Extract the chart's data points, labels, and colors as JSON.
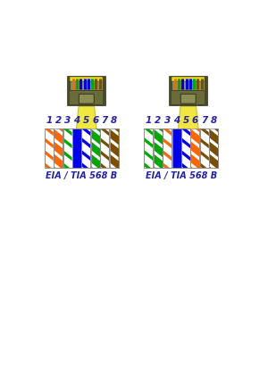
{
  "bg_color": "#ffffff",
  "label_color": "#2222aa",
  "label_fontsize": 7.5,
  "eia_label": "EIA / TIA 568 B",
  "eia_fontsize": 7,
  "numbers": [
    "1",
    "2",
    "3",
    "4",
    "5",
    "6",
    "7",
    "8"
  ],
  "left_wires": [
    {
      "main": "#ffffff",
      "stripe": "#ff6600"
    },
    {
      "main": "#ff6600",
      "stripe": "#ffffff"
    },
    {
      "main": "#ffffff",
      "stripe": "#00aa00"
    },
    {
      "main": "#0000ee",
      "stripe": "#0000ee"
    },
    {
      "main": "#ffffff",
      "stripe": "#0000ee"
    },
    {
      "main": "#00aa00",
      "stripe": "#ffffff"
    },
    {
      "main": "#ffffff",
      "stripe": "#7b4f00"
    },
    {
      "main": "#7b4f00",
      "stripe": "#ffffff"
    }
  ],
  "right_wires": [
    {
      "main": "#ffffff",
      "stripe": "#00aa00"
    },
    {
      "main": "#00aa00",
      "stripe": "#ffffff"
    },
    {
      "main": "#ffffff",
      "stripe": "#ff6600"
    },
    {
      "main": "#0000ee",
      "stripe": "#0000ee"
    },
    {
      "main": "#ffffff",
      "stripe": "#0000ee"
    },
    {
      "main": "#ff6600",
      "stripe": "#ffffff"
    },
    {
      "main": "#ffffff",
      "stripe": "#7b4f00"
    },
    {
      "main": "#7b4f00",
      "stripe": "#ffffff"
    }
  ],
  "connector_body_color": "#6b6b3a",
  "connector_highlight_color": "#8c8c55",
  "connector_dark_color": "#4a4a28",
  "cable_color": "#f0e840",
  "cable_edge_color": "#c8c020",
  "connector_border": "#333320",
  "pin_colors": [
    "#ff6600",
    "#00aa00",
    "#0000ee",
    "#0000ee",
    "#0000ee",
    "#00aa00",
    "#7b4f00",
    "#7b4f00"
  ]
}
